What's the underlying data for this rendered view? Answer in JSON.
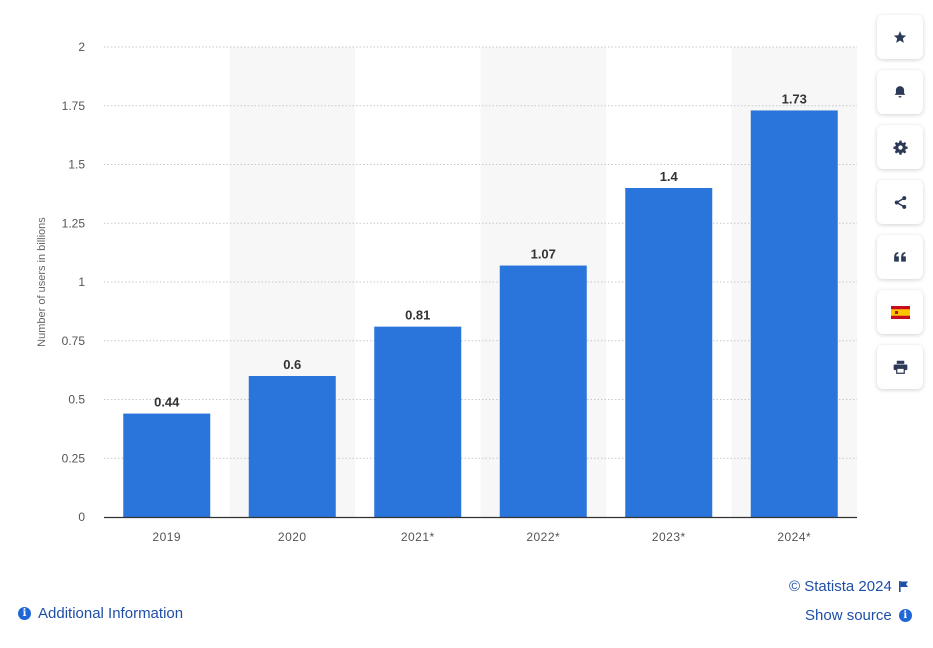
{
  "chart_data": {
    "type": "bar",
    "categories": [
      "2019",
      "2020",
      "2021*",
      "2022*",
      "2023*",
      "2024*"
    ],
    "values": [
      0.44,
      0.6,
      0.81,
      1.07,
      1.4,
      1.73
    ],
    "data_labels": [
      "0.44",
      "0.6",
      "0.81",
      "1.07",
      "1.4",
      "1.73"
    ],
    "ylabel": "Number of users in billions",
    "xlabel": "",
    "ylim": [
      0,
      2
    ],
    "yticks": [
      0,
      0.25,
      0.5,
      0.75,
      1,
      1.25,
      1.5,
      1.75,
      2
    ],
    "ytick_labels": [
      "0",
      "0.25",
      "0.5",
      "0.75",
      "1",
      "1.25",
      "1.5",
      "1.75",
      "2"
    ],
    "grid": true,
    "bar_color": "#2a75dc",
    "alternate_band_color": "#f7f7f7"
  },
  "toolbar": {
    "items": [
      "star-icon",
      "bell-icon",
      "gear-icon",
      "share-icon",
      "quote-icon",
      "spain-flag-icon",
      "print-icon"
    ]
  },
  "footer": {
    "copyright": "© Statista 2024",
    "show_source": "Show source",
    "additional_info": "Additional Information"
  },
  "colors": {
    "link": "#1e4fa8",
    "accent": "#1f66d6",
    "axis_text": "#555555"
  }
}
